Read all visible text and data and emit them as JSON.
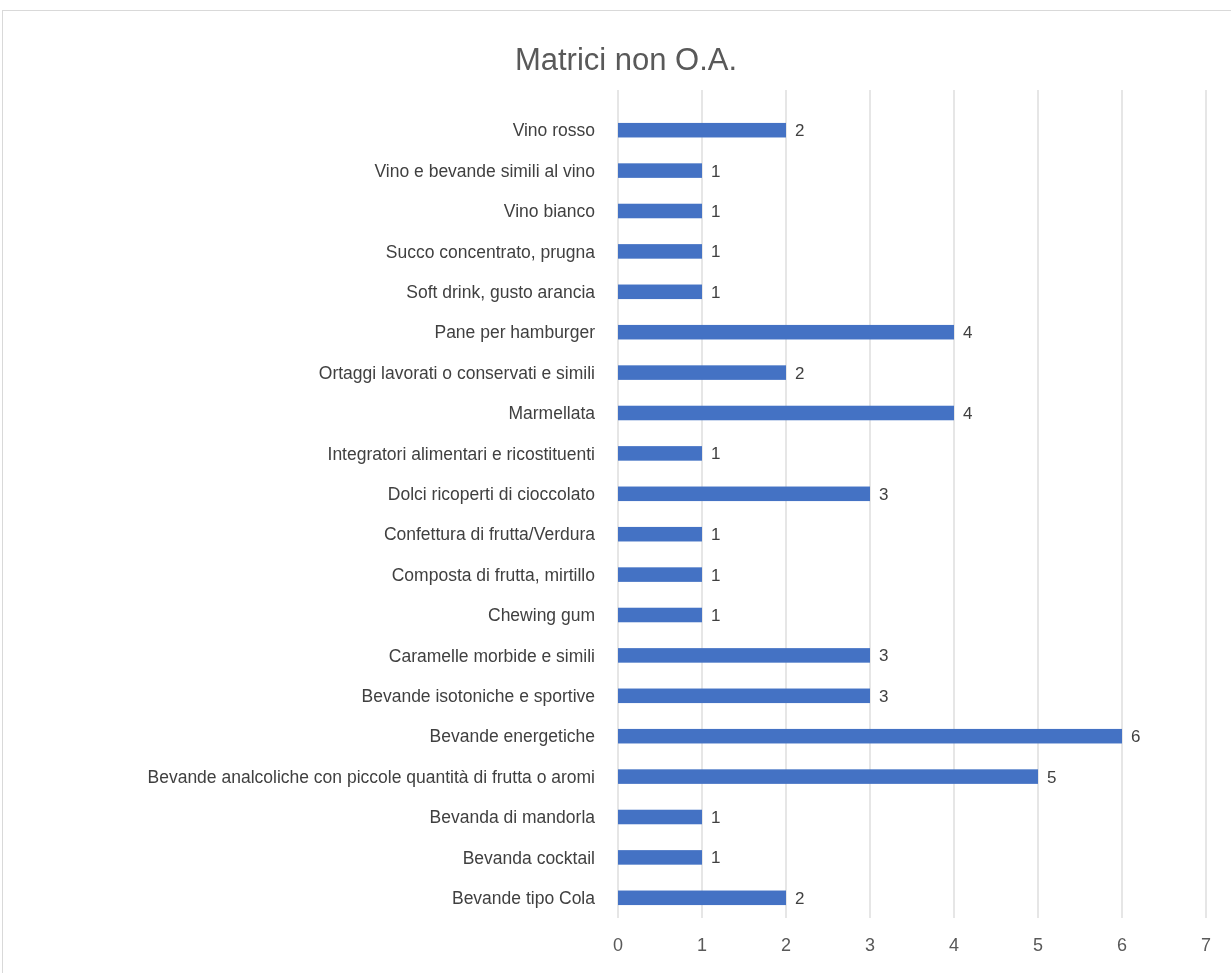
{
  "chart_data": {
    "type": "bar",
    "orientation": "horizontal",
    "title": "Matrici non O.A.",
    "categories": [
      "Vino rosso",
      "Vino e bevande simili al vino",
      "Vino bianco",
      "Succo concentrato, prugna",
      "Soft drink, gusto arancia",
      "Pane per hamburger",
      "Ortaggi lavorati o conservati e simili",
      "Marmellata",
      "Integratori alimentari e ricostituenti",
      "Dolci ricoperti di cioccolato",
      "Confettura di frutta/Verdura",
      "Composta di frutta, mirtillo",
      "Chewing gum",
      "Caramelle morbide e simili",
      "Bevande isotoniche e sportive",
      "Bevande energetiche",
      "Bevande analcoliche con piccole quantità di frutta o aromi",
      "Bevanda di mandorla",
      "Bevanda cocktail",
      "Bevande tipo Cola"
    ],
    "values": [
      2,
      1,
      1,
      1,
      1,
      4,
      2,
      4,
      1,
      3,
      1,
      1,
      1,
      3,
      3,
      6,
      5,
      1,
      1,
      2
    ],
    "color": "#4472c4",
    "xlim": [
      0,
      7
    ],
    "xticks": [
      0,
      1,
      2,
      3,
      4,
      5,
      6,
      7
    ],
    "grid": "x",
    "data_labels": true
  }
}
